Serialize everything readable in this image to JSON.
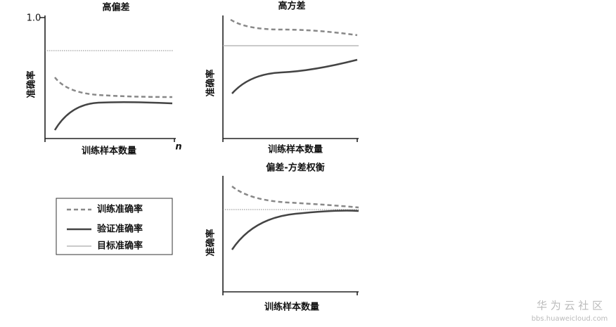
{
  "panels": [
    {
      "title": "高偏差",
      "y_tick": "1.0",
      "y_label": "准确率",
      "x_label": "训练样本数量",
      "x_end": "n"
    },
    {
      "title": "高方差",
      "y_label": "准确率",
      "x_label": "训练样本数量"
    },
    {
      "title": "偏差-方差权衡",
      "y_label": "准确率",
      "x_label": "训练样本数量"
    }
  ],
  "legend": {
    "items": [
      "训练准确率",
      "验证准确率",
      "目标准确率"
    ]
  },
  "watermark": {
    "name": "华 为 云 社 区",
    "url": "bbs.huaweicloud.com"
  }
}
